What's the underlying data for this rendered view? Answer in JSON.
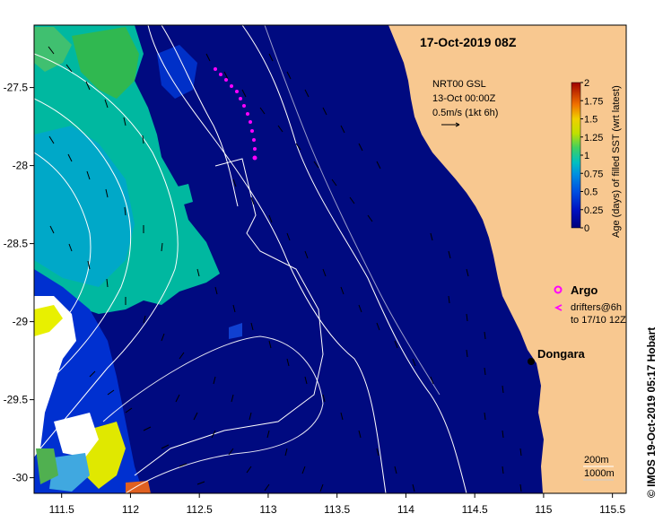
{
  "map": {
    "title": "17-Oct-2019 08Z",
    "lon_range": [
      111.3,
      115.6
    ],
    "lat_range": [
      -30.1,
      -27.1
    ],
    "lon_ticks": [
      "111.5",
      "112",
      "112.5",
      "113",
      "113.5",
      "114",
      "114.5",
      "115",
      "115.5"
    ],
    "lon_values": [
      111.5,
      112,
      112.5,
      113,
      113.5,
      114,
      114.5,
      115,
      115.5
    ],
    "lat_ticks": [
      "-27.5",
      "-28",
      "-28.5",
      "-29",
      "-29.5",
      "-30"
    ],
    "lat_values": [
      -27.5,
      -28,
      -28.5,
      -29,
      -29.5,
      -30
    ],
    "colors": {
      "ocean_deep": "#000a80",
      "ocean_mid": "#0033cc",
      "teal": "#00b8a0",
      "cyan": "#00c8d8",
      "green": "#55d040",
      "yellow": "#e8f000",
      "land": "#f8c890",
      "argo": "#ff00ff"
    }
  },
  "legend": {
    "product": "NRT00 GSL",
    "time": "13-Oct 00:00Z",
    "scale": "0.5m/s (1kt 6h)",
    "argo": "Argo",
    "drifters_line1": "drifters@6h",
    "drifters_line2": "to 17/10 12Z",
    "depth_200": "200m",
    "depth_1000": "1000m"
  },
  "places": {
    "dongara": "Dongara"
  },
  "colorbar": {
    "label": "Age (days) of filled SST (wrt latest)",
    "ticks": [
      "2",
      "1.75",
      "1.5",
      "1.25",
      "1",
      "0.75",
      "0.5",
      "0.25",
      "0"
    ]
  },
  "credit": "© IMOS 19-Oct-2019 05:17 Hobart"
}
